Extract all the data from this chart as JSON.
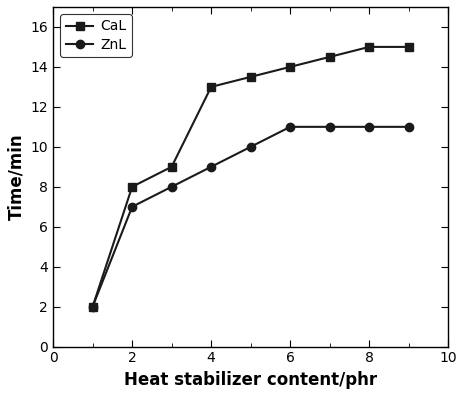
{
  "CaL_x": [
    1,
    2,
    3,
    4,
    5,
    6,
    7,
    8,
    9
  ],
  "CaL_y": [
    2,
    8,
    9,
    13,
    13.5,
    14,
    14.5,
    15,
    15
  ],
  "ZnL_x": [
    1,
    2,
    3,
    4,
    5,
    6,
    7,
    8,
    9
  ],
  "ZnL_y": [
    2,
    7,
    8,
    9,
    10,
    11,
    11,
    11,
    11
  ],
  "xlabel": "Heat stabilizer content/phr",
  "ylabel": "Time/min",
  "xlim": [
    0,
    10
  ],
  "ylim": [
    0,
    17
  ],
  "yticks": [
    0,
    2,
    4,
    6,
    8,
    10,
    12,
    14,
    16
  ],
  "xticks": [
    0,
    2,
    4,
    6,
    8,
    10
  ],
  "xticks_minor": [
    1,
    3,
    5,
    7,
    9
  ],
  "legend_CaL": "CaL",
  "legend_ZnL": "ZnL",
  "line_color": "#1a1a1a",
  "marker_color": "#1a1a1a",
  "marker_CaL": "s",
  "marker_ZnL": "o",
  "markersize": 6,
  "linewidth": 1.5,
  "xlabel_fontsize": 12,
  "ylabel_fontsize": 12,
  "legend_fontsize": 10,
  "tick_fontsize": 10,
  "figsize": [
    4.64,
    3.96
  ],
  "dpi": 100
}
